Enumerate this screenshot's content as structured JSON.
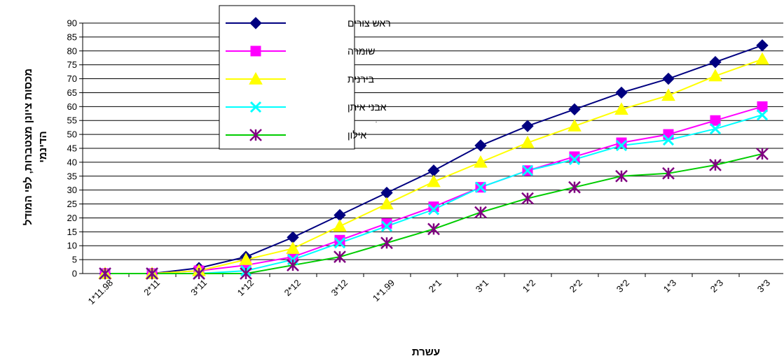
{
  "chart_data": {
    "type": "line",
    "xlabel": "עשרת",
    "ylabel_line1": "מכסות ציונן מצטברות, לפי המודל",
    "ylabel_line2": "הדינמי",
    "ylim": [
      0,
      90
    ],
    "yticks": [
      0,
      5,
      10,
      15,
      20,
      25,
      30,
      35,
      40,
      45,
      50,
      55,
      60,
      65,
      70,
      75,
      80,
      85,
      90
    ],
    "grid": true,
    "legend_position": "top-left",
    "categories": [
      "1*11.98",
      "2*11",
      "3*11",
      "1*12",
      "2*12",
      "3*12",
      "1*1.99",
      "2*1",
      "3*1",
      "1*2",
      "2*2",
      "3*2",
      "1*3",
      "2*3",
      "3*3"
    ],
    "series": [
      {
        "name": "ראש צורים",
        "color": "#000080",
        "marker": "diamond",
        "values": [
          0,
          0,
          2,
          6,
          13,
          21,
          29,
          37,
          46,
          53,
          59,
          65,
          70,
          76,
          82
        ]
      },
      {
        "name": "שומרה",
        "color": "#ff00ff",
        "marker": "square",
        "values": [
          0,
          0,
          1,
          3,
          6,
          12,
          18,
          24,
          31,
          37,
          42,
          47,
          50,
          55,
          60
        ]
      },
      {
        "name": "בירנית",
        "color": "#ffff00",
        "marker": "triangle",
        "values": [
          0,
          0,
          1,
          5,
          9,
          17,
          25,
          33,
          40,
          47,
          53,
          59,
          64,
          71,
          77
        ]
      },
      {
        "name": "אבני איתן",
        "color": "#00ffff",
        "marker": "x",
        "values": [
          0,
          0,
          0,
          1,
          5,
          11,
          17,
          23,
          31,
          37,
          41,
          46,
          48,
          52,
          57
        ]
      },
      {
        "name": "אילון",
        "color": "#00cc00",
        "marker": "star",
        "markerColor": "#800080",
        "values": [
          0,
          0,
          0,
          0,
          3,
          6,
          11,
          16,
          22,
          27,
          31,
          35,
          36,
          39,
          43
        ]
      }
    ]
  }
}
